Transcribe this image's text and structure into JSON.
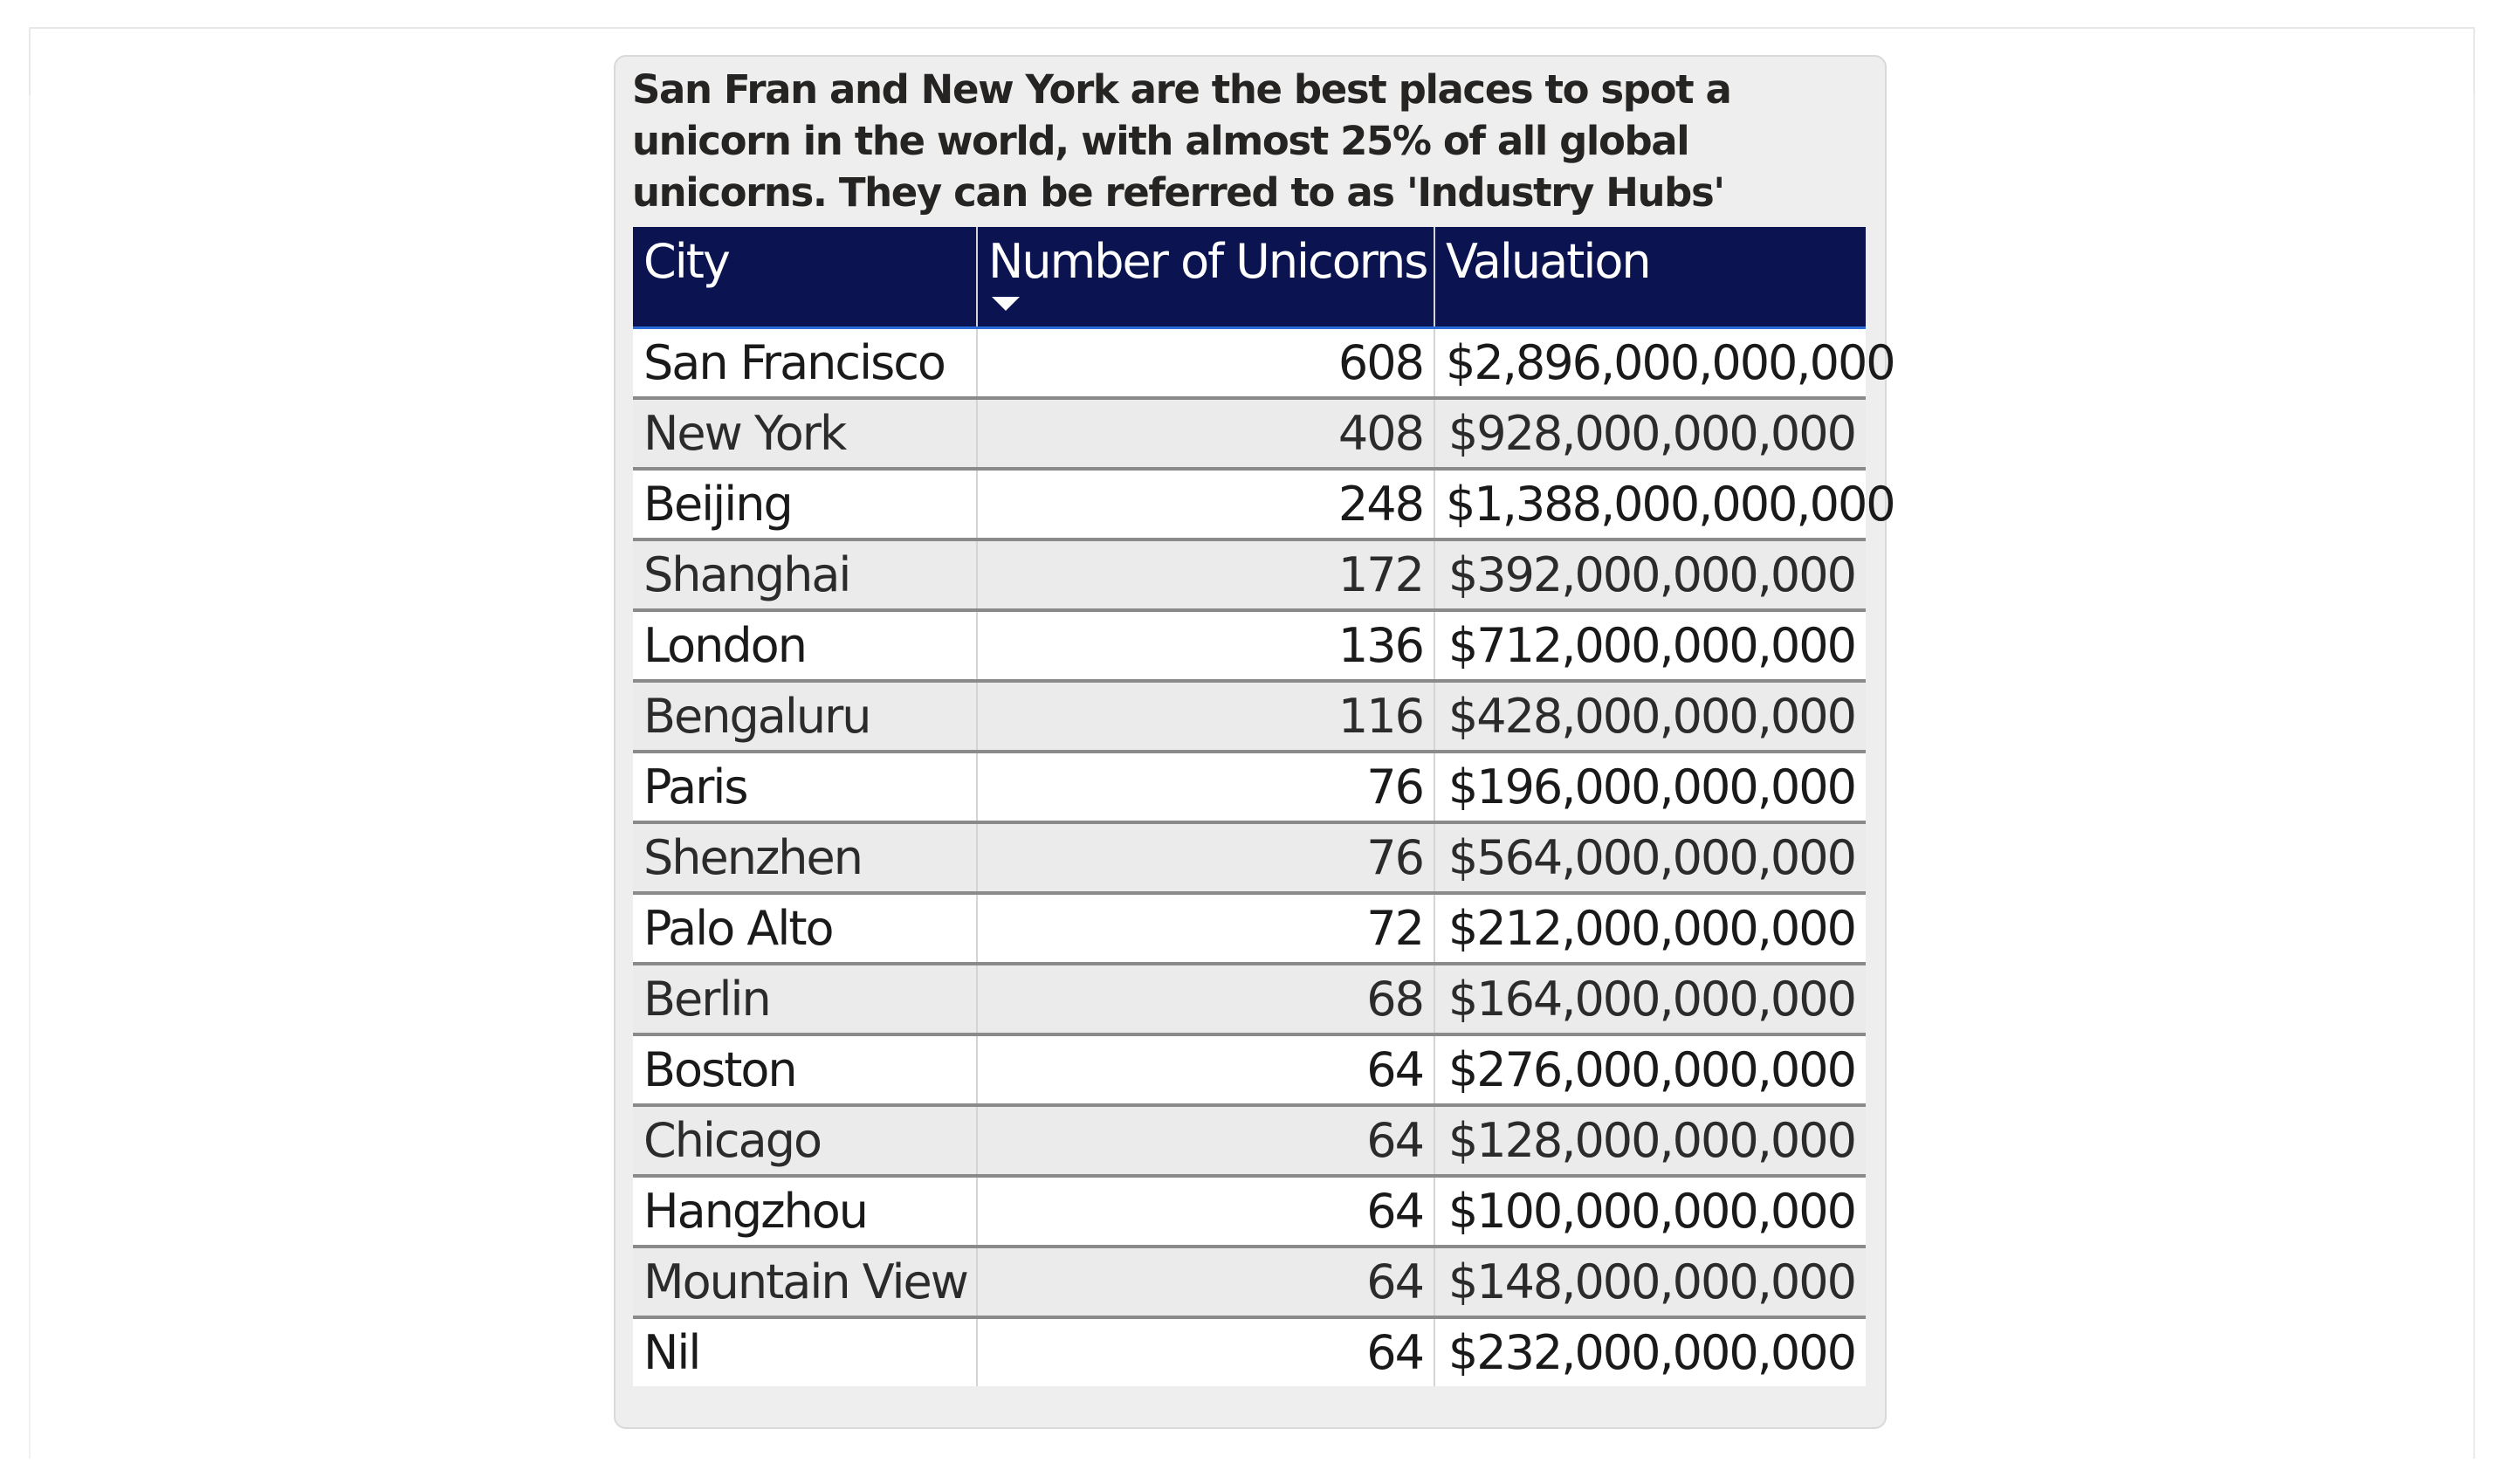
{
  "title": "San Fran and New York are the best places to spot a unicorn in the world, with almost 25% of all global unicorns. They can be referred to as 'Industry Hubs'",
  "table": {
    "columns": [
      "City",
      "Number of Unicorns",
      "Valuation"
    ],
    "sort_column": "Number of Unicorns",
    "sort_direction": "descending",
    "sort_icon": "caret-down-icon",
    "rows": [
      {
        "city": "San Francisco",
        "unicorns": "608",
        "valuation": "$2,896,000,000,000"
      },
      {
        "city": "New York",
        "unicorns": "408",
        "valuation": "$928,000,000,000"
      },
      {
        "city": "Beijing",
        "unicorns": "248",
        "valuation": "$1,388,000,000,000"
      },
      {
        "city": "Shanghai",
        "unicorns": "172",
        "valuation": "$392,000,000,000"
      },
      {
        "city": "London",
        "unicorns": "136",
        "valuation": "$712,000,000,000"
      },
      {
        "city": "Bengaluru",
        "unicorns": "116",
        "valuation": "$428,000,000,000"
      },
      {
        "city": "Paris",
        "unicorns": "76",
        "valuation": "$196,000,000,000"
      },
      {
        "city": "Shenzhen",
        "unicorns": "76",
        "valuation": "$564,000,000,000"
      },
      {
        "city": "Palo Alto",
        "unicorns": "72",
        "valuation": "$212,000,000,000"
      },
      {
        "city": "Berlin",
        "unicorns": "68",
        "valuation": "$164,000,000,000"
      },
      {
        "city": "Boston",
        "unicorns": "64",
        "valuation": "$276,000,000,000"
      },
      {
        "city": "Chicago",
        "unicorns": "64",
        "valuation": "$128,000,000,000"
      },
      {
        "city": "Hangzhou",
        "unicorns": "64",
        "valuation": "$100,000,000,000"
      },
      {
        "city": "Mountain View",
        "unicorns": "64",
        "valuation": "$148,000,000,000"
      },
      {
        "city": "Nil",
        "unicorns": "64",
        "valuation": "$232,000,000,000"
      }
    ]
  },
  "colors": {
    "header_background": "#0b1450",
    "header_text": "#ffffff",
    "header_underline": "#2a6cd9",
    "card_background": "#eeeeee",
    "row_alt_background": "#ebebeb",
    "row_divider": "#8a8a8a"
  }
}
